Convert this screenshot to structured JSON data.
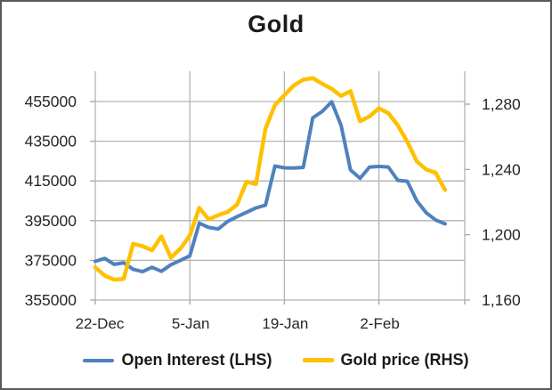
{
  "title": "Gold",
  "colors": {
    "open_interest": "#4F81BD",
    "gold_price": "#FFC000",
    "gridline": "#B3B3B3",
    "tick": "#A6A6A6",
    "text": "#262626",
    "border": "#595959",
    "background": "#FFFFFF"
  },
  "legend": {
    "items": [
      {
        "label": "Open Interest (LHS)",
        "series": "open_interest"
      },
      {
        "label": "Gold price (RHS)",
        "series": "gold_price"
      }
    ]
  },
  "axes": {
    "left": {
      "labels": [
        "455000",
        "435000",
        "415000",
        "395000",
        "375000",
        "355000"
      ],
      "values": [
        455000,
        435000,
        415000,
        395000,
        375000,
        355000
      ]
    },
    "right": {
      "labels": [
        "1,280",
        "1,240",
        "1,200",
        "1,160"
      ],
      "values": [
        1280,
        1240,
        1200,
        1160
      ]
    },
    "x": {
      "tick_labels": [
        "22-Dec",
        "5-Jan",
        "19-Jan",
        "2-Feb"
      ],
      "tick_indices": [
        0,
        10,
        20,
        30
      ]
    }
  },
  "chart_data": {
    "type": "line",
    "title": "Gold",
    "x": [
      "22-Dec",
      "23-Dec",
      "24-Dec",
      "25-Dec",
      "26-Dec",
      "29-Dec",
      "30-Dec",
      "31-Dec",
      "1-Jan",
      "2-Jan",
      "5-Jan",
      "6-Jan",
      "7-Jan",
      "8-Jan",
      "9-Jan",
      "12-Jan",
      "13-Jan",
      "14-Jan",
      "15-Jan",
      "16-Jan",
      "19-Jan",
      "20-Jan",
      "21-Jan",
      "22-Jan",
      "23-Jan",
      "26-Jan",
      "27-Jan",
      "28-Jan",
      "29-Jan",
      "30-Jan",
      "2-Feb",
      "3-Feb",
      "4-Feb",
      "5-Feb",
      "6-Feb",
      "9-Feb",
      "10-Feb",
      "11-Feb"
    ],
    "series": [
      {
        "name": "Open Interest (LHS)",
        "axis": "left",
        "color": "#4F81BD",
        "values": [
          374500,
          376000,
          373000,
          373800,
          370500,
          369300,
          371500,
          369500,
          372800,
          375000,
          377300,
          393700,
          391600,
          390800,
          394600,
          397000,
          399200,
          401400,
          402800,
          422500,
          421600,
          421500,
          421800,
          446800,
          450000,
          454800,
          443000,
          420500,
          416300,
          422000,
          422300,
          422000,
          415300,
          414800,
          405000,
          399000,
          395300,
          393400
        ]
      },
      {
        "name": "Gold price (RHS)",
        "axis": "right",
        "color": "#FFC000",
        "values": [
          1180,
          1175,
          1172.5,
          1173,
          1194.5,
          1193,
          1190.5,
          1199,
          1186,
          1191.5,
          1199.5,
          1216.5,
          1209.5,
          1212,
          1214,
          1218.5,
          1232.5,
          1231,
          1265,
          1279.5,
          1285.5,
          1291.5,
          1295,
          1296,
          1292.5,
          1289.5,
          1285,
          1288,
          1269.5,
          1272.5,
          1277.5,
          1274.5,
          1267,
          1257,
          1245,
          1240,
          1238,
          1227.5
        ]
      }
    ],
    "left_axis": {
      "label": "",
      "range": [
        355000,
        470000
      ],
      "ticks": [
        355000,
        375000,
        395000,
        415000,
        435000,
        455000
      ]
    },
    "right_axis": {
      "label": "",
      "range": [
        1160,
        1300
      ],
      "ticks": [
        1160,
        1200,
        1240,
        1280
      ]
    },
    "x_axis": {
      "labeled_ticks": [
        "22-Dec",
        "5-Jan",
        "19-Jan",
        "2-Feb"
      ]
    },
    "grid": true,
    "legend_position": "bottom"
  }
}
